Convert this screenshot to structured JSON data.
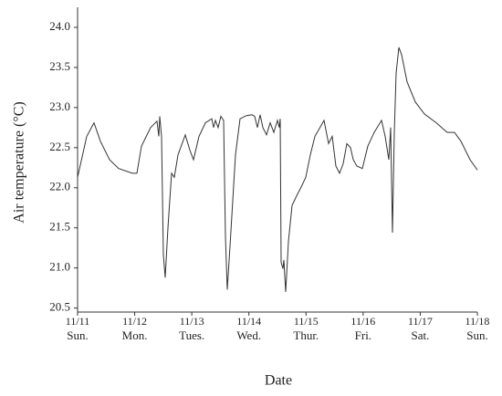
{
  "chart_data": {
    "type": "line",
    "x_label": "Date",
    "y_label": "Air temperature (°C)",
    "xlim": [
      0,
      7
    ],
    "ylim": [
      20.45,
      24.25
    ],
    "xticks": [
      {
        "value": 0,
        "label": "11/11"
      },
      {
        "value": 1,
        "label": "11/12"
      },
      {
        "value": 2,
        "label": "11/13"
      },
      {
        "value": 3,
        "label": "11/14"
      },
      {
        "value": 4,
        "label": "11/15"
      },
      {
        "value": 5,
        "label": "11/16"
      },
      {
        "value": 6,
        "label": "11/17"
      },
      {
        "value": 7,
        "label": "11/18"
      }
    ],
    "xtick_days": [
      "Sun.",
      "Mon.",
      "Tues.",
      "Wed.",
      "Thur.",
      "Fri.",
      "Sat.",
      "Sun."
    ],
    "yticks": [
      20.5,
      {
        "value": 21,
        "label": "21.0"
      },
      21.5,
      {
        "value": 22,
        "label": "22.0"
      },
      22.5,
      {
        "value": 23,
        "label": "23.0"
      },
      23.5,
      {
        "value": 24,
        "label": "24.0"
      }
    ],
    "series": [
      {
        "color": "#333333",
        "x": [
          0,
          0.16,
          0.288,
          0.4,
          0.559,
          0.719,
          0.959,
          1.039,
          1.119,
          1.279,
          1.39,
          1.422,
          1.438,
          1.47,
          1.502,
          1.534,
          1.582,
          1.646,
          1.694,
          1.758,
          1.886,
          1.966,
          2.03,
          2.126,
          2.237,
          2.349,
          2.381,
          2.413,
          2.461,
          2.509,
          2.557,
          2.589,
          2.621,
          2.669,
          2.765,
          2.845,
          2.957,
          3.053,
          3.101,
          3.148,
          3.196,
          3.244,
          3.308,
          3.372,
          3.436,
          3.5,
          3.532,
          3.548,
          3.564,
          3.596,
          3.612,
          3.644,
          3.692,
          3.756,
          3.836,
          3.916,
          3.996,
          4.075,
          4.155,
          4.267,
          4.315,
          4.395,
          4.459,
          4.523,
          4.587,
          4.651,
          4.715,
          4.779,
          4.827,
          4.891,
          4.987,
          5.082,
          5.194,
          5.322,
          5.386,
          5.45,
          5.482,
          5.514,
          5.546,
          5.578,
          5.626,
          5.674,
          5.77,
          5.913,
          6.073,
          6.281,
          6.473,
          6.601,
          6.713,
          6.872,
          7.0
        ],
        "values": [
          22.13,
          22.64,
          22.81,
          22.58,
          22.35,
          22.24,
          22.18,
          22.18,
          22.52,
          22.75,
          22.83,
          22.64,
          22.89,
          22.64,
          21.16,
          20.88,
          21.5,
          22.18,
          22.13,
          22.41,
          22.66,
          22.47,
          22.35,
          22.64,
          22.81,
          22.86,
          22.75,
          22.84,
          22.75,
          22.89,
          22.84,
          21.39,
          20.73,
          21.27,
          22.41,
          22.86,
          22.9,
          22.91,
          22.89,
          22.75,
          22.91,
          22.75,
          22.66,
          22.81,
          22.69,
          22.84,
          22.75,
          22.86,
          21.07,
          20.99,
          21.1,
          20.7,
          21.33,
          21.78,
          21.9,
          22.01,
          22.13,
          22.41,
          22.64,
          22.78,
          22.84,
          22.55,
          22.64,
          22.27,
          22.18,
          22.3,
          22.55,
          22.5,
          22.35,
          22.27,
          22.24,
          22.52,
          22.69,
          22.84,
          22.64,
          22.35,
          22.75,
          21.44,
          22.69,
          23.43,
          23.75,
          23.66,
          23.32,
          23.07,
          22.92,
          22.81,
          22.69,
          22.69,
          22.58,
          22.35,
          22.22
        ]
      }
    ]
  }
}
